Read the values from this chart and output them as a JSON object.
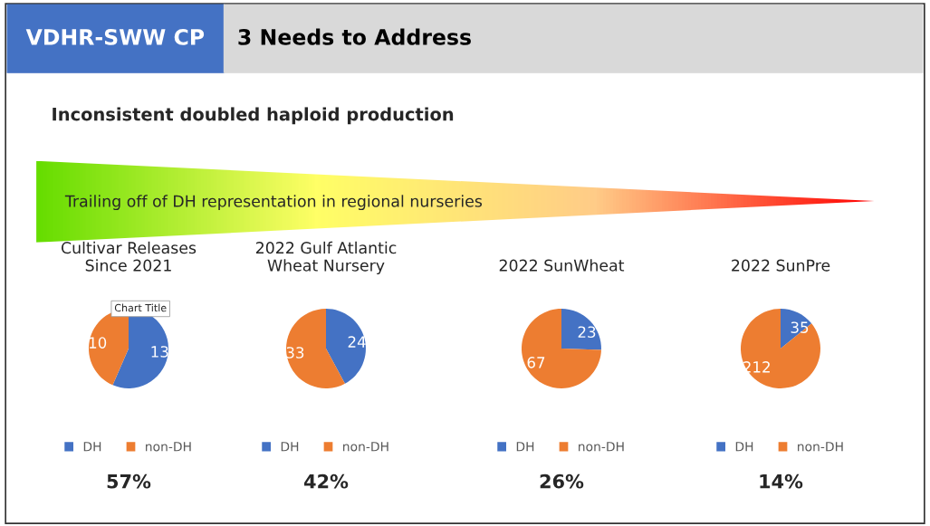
{
  "chart_data": [
    {
      "type": "other",
      "title": "VDHR-SWW CP",
      "subtitle": "3 Needs to Address",
      "annotations": [
        "Inconsistent doubled haploid production",
        "Trailing off of DH representation in regional nurseries"
      ]
    },
    {
      "type": "pie",
      "title": "Cultivar Releases\nSince 2021",
      "categories": [
        "DH",
        "non-DH"
      ],
      "values": [
        13,
        10
      ],
      "colors": [
        "#4472c4",
        "#ed7d31"
      ],
      "data_labels": true,
      "legend": "bottom",
      "annotations": [
        "57%",
        "Chart Title"
      ]
    },
    {
      "type": "pie",
      "title": "2022 Gulf Atlantic\nWheat Nursery",
      "categories": [
        "DH",
        "non-DH"
      ],
      "values": [
        24,
        33
      ],
      "colors": [
        "#4472c4",
        "#ed7d31"
      ],
      "data_labels": true,
      "legend": "bottom",
      "annotations": [
        "42%"
      ]
    },
    {
      "type": "pie",
      "title": "2022 SunWheat",
      "categories": [
        "DH",
        "non-DH"
      ],
      "values": [
        23,
        67
      ],
      "colors": [
        "#4472c4",
        "#ed7d31"
      ],
      "data_labels": true,
      "legend": "bottom",
      "annotations": [
        "26%"
      ]
    },
    {
      "type": "pie",
      "title": "2022 SunPre",
      "categories": [
        "DH",
        "non-DH"
      ],
      "values": [
        35,
        212
      ],
      "colors": [
        "#4472c4",
        "#ed7d31"
      ],
      "data_labels": true,
      "legend": "bottom",
      "annotations": [
        "14%"
      ]
    }
  ]
}
